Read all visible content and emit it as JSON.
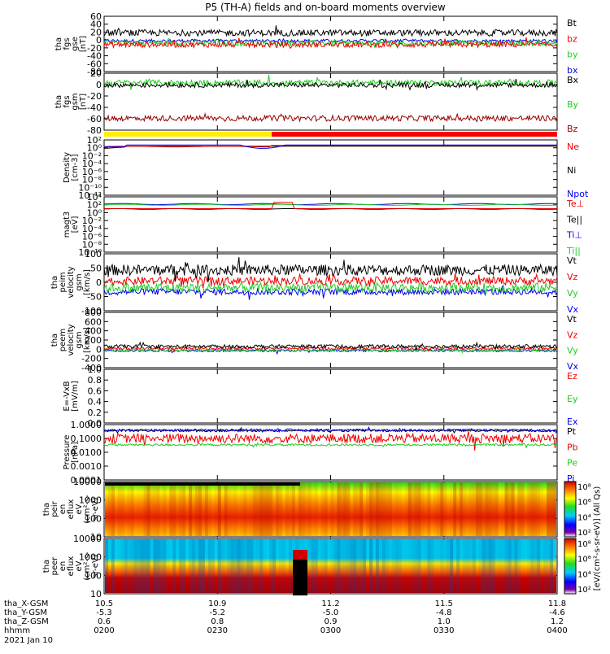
{
  "title": "P5 (TH-A) fields and on-board moments overview",
  "colors": {
    "black": "#000000",
    "red": "#ee0000",
    "green": "#22cc22",
    "blue": "#0000ee",
    "darkred": "#990000",
    "yellow": "#ffee00",
    "bright_red": "#ff0000"
  },
  "chart_data": [
    {
      "type": "line",
      "id": "fgs-gse",
      "ylabel": [
        "tha",
        "fgs",
        "gse",
        "[nT]"
      ],
      "yticks": [
        "60",
        "40",
        "20",
        "0",
        "-20",
        "-40",
        "-60",
        "-80"
      ],
      "ylim": [
        -80,
        60
      ],
      "series": [
        {
          "name": "Bt",
          "color": "#000000",
          "approx_level": 18,
          "noise": 8
        },
        {
          "name": "bz",
          "color": "#ee0000",
          "approx_level": -12,
          "noise": 7
        },
        {
          "name": "by",
          "color": "#22cc22",
          "approx_level": -8,
          "noise": 7
        },
        {
          "name": "bx",
          "color": "#0000ee",
          "approx_level": -2,
          "noise": 4
        }
      ]
    },
    {
      "type": "line",
      "id": "fgs-gsm",
      "ylabel": [
        "tha",
        "fgs",
        "gsm",
        "[nT]"
      ],
      "yticks": [
        "20",
        "0",
        "-20",
        "-40",
        "-60",
        "-80"
      ],
      "ylim": [
        -90,
        30
      ],
      "series": [
        {
          "name": "Bx",
          "color": "#000000",
          "approx_level": 5,
          "noise": 5
        },
        {
          "name": "By",
          "color": "#22cc22",
          "approx_level": 10,
          "noise": 6
        },
        {
          "name": "Bz",
          "color": "#990000",
          "approx_level": -65,
          "noise": 6
        }
      ]
    },
    {
      "type": "line",
      "id": "density",
      "ylabel": [
        "Density",
        "[cm-3]"
      ],
      "yticks": [
        "10²",
        "10⁰",
        "10⁻²",
        "10⁻⁴",
        "10⁻⁶",
        "10⁻⁸",
        "10⁻¹⁰",
        "10⁻¹²"
      ],
      "ylim": [
        -13,
        2
      ],
      "log": true,
      "series": [
        {
          "name": "Ne",
          "color": "#ee0000"
        },
        {
          "name": "Ni",
          "color": "#000000"
        },
        {
          "name": "Npot",
          "color": "#0000ee"
        }
      ]
    },
    {
      "type": "line",
      "id": "temperature",
      "ylabel": [
        "magt3",
        "[eV]"
      ],
      "yticks": [
        "10⁴",
        "10²",
        "10⁰",
        "10⁻²",
        "10⁻⁴",
        "10⁻⁶",
        "10⁻⁸",
        "10⁻¹⁰"
      ],
      "ylim": [
        -11,
        5
      ],
      "log": true,
      "series": [
        {
          "name": "Te⊥",
          "color": "#ee0000"
        },
        {
          "name": "Te||",
          "color": "#000000"
        },
        {
          "name": "Ti⊥",
          "color": "#0000ee"
        },
        {
          "name": "Ti||",
          "color": "#22cc22"
        }
      ]
    },
    {
      "type": "line",
      "id": "peim-velocity",
      "ylabel": [
        "tha",
        "peim",
        "velocity",
        "gsm",
        "[km/s]"
      ],
      "yticks": [
        "100",
        "50",
        "0",
        "-50",
        "-100"
      ],
      "ylim": [
        -100,
        110
      ],
      "series": [
        {
          "name": "Vt",
          "color": "#000000",
          "approx_level": 50,
          "noise": 20
        },
        {
          "name": "Vz",
          "color": "#ee0000",
          "approx_level": 10,
          "noise": 15
        },
        {
          "name": "Vy",
          "color": "#22cc22",
          "approx_level": -15,
          "noise": 18
        },
        {
          "name": "Vx",
          "color": "#0000ee",
          "approx_level": -30,
          "noise": 12
        }
      ]
    },
    {
      "type": "line",
      "id": "peem-velocity",
      "ylabel": [
        "tha",
        "peem",
        "velocity",
        "gsm",
        "[km/s]"
      ],
      "yticks": [
        "800",
        "600",
        "400",
        "200",
        "0",
        "-200",
        "-400"
      ],
      "ylim": [
        -400,
        800
      ],
      "series": [
        {
          "name": "Vt",
          "color": "#000000",
          "approx_level": 60,
          "noise": 40
        },
        {
          "name": "Vz",
          "color": "#ee0000",
          "approx_level": 20,
          "noise": 30
        },
        {
          "name": "Vy",
          "color": "#22cc22",
          "approx_level": -20,
          "noise": 30
        },
        {
          "name": "Vx",
          "color": "#0000ee",
          "approx_level": -30,
          "noise": 25
        }
      ]
    },
    {
      "type": "line",
      "id": "efield",
      "ylabel": [
        "E=-VxB",
        "[mV/m]"
      ],
      "yticks": [
        "1.0",
        "0.8",
        "0.6",
        "0.4",
        "0.2",
        "0.0"
      ],
      "ylim": [
        0,
        1
      ],
      "series": [
        {
          "name": "Ez",
          "color": "#ee0000"
        },
        {
          "name": "Ey",
          "color": "#22cc22"
        },
        {
          "name": "Ex",
          "color": "#0000ee"
        }
      ]
    },
    {
      "type": "line",
      "id": "pressure",
      "ylabel": [
        "Pressure",
        "[nPa]"
      ],
      "yticks": [
        "1.0000",
        "0.1000",
        "0.0100",
        "0.0010",
        "0.0001"
      ],
      "ylim": [
        -4,
        0.1
      ],
      "log": true,
      "series": [
        {
          "name": "Pt",
          "color": "#000000",
          "approx_level": 0.45
        },
        {
          "name": "Pb",
          "color": "#ee0000",
          "approx_level": 0.12
        },
        {
          "name": "Pe",
          "color": "#22cc22",
          "approx_level": 0.04
        },
        {
          "name": "Pi",
          "color": "#0000ee",
          "approx_level": 0.5
        }
      ]
    },
    {
      "type": "heatmap",
      "id": "peir-spectrogram",
      "ylabel": [
        "tha",
        "peir",
        "en",
        "eflux",
        "eV",
        "(cm²-s-",
        "sr-eV)"
      ],
      "yticks": [
        "10000",
        "1000",
        "100",
        "10"
      ],
      "colorbar": {
        "ticks": [
          "10⁸",
          "10⁶",
          "10⁴",
          "10²"
        ],
        "label": "[eV/(cm²-s-sr-eV)] (All Qs)"
      }
    },
    {
      "type": "heatmap",
      "id": "peer-spectrogram",
      "ylabel": [
        "tha",
        "peer",
        "en",
        "eflux",
        "eV",
        "(cm²-s-",
        "sr-eV)"
      ],
      "yticks": [
        "10000",
        "1000",
        "100",
        "10"
      ],
      "colorbar": {
        "ticks": [
          "10⁸",
          "10⁶",
          "10⁴",
          "10²"
        ],
        "label": "[eV/(cm²-s-sr-eV)] (All Qs)"
      }
    }
  ],
  "x_axis": {
    "rows": [
      {
        "label": "tha_X-GSM",
        "values": [
          "10.5",
          "10.9",
          "11.2",
          "11.5",
          "11.8"
        ]
      },
      {
        "label": "tha_Y-GSM",
        "values": [
          "-5.3",
          "-5.2",
          "-5.0",
          "-4.8",
          "-4.6"
        ]
      },
      {
        "label": "tha_Z-GSM",
        "values": [
          "0.6",
          "0.8",
          "0.9",
          "1.0",
          "1.2"
        ]
      },
      {
        "label": "hhmm",
        "values": [
          "0200",
          "0230",
          "0300",
          "0330",
          "0400"
        ]
      }
    ],
    "date": "2021 Jan 10"
  },
  "mode_bar": {
    "segments": [
      {
        "color": "#ffee00",
        "from": 0,
        "to": 0.37
      },
      {
        "color": "#ff0000",
        "from": 0.37,
        "to": 1
      }
    ]
  }
}
